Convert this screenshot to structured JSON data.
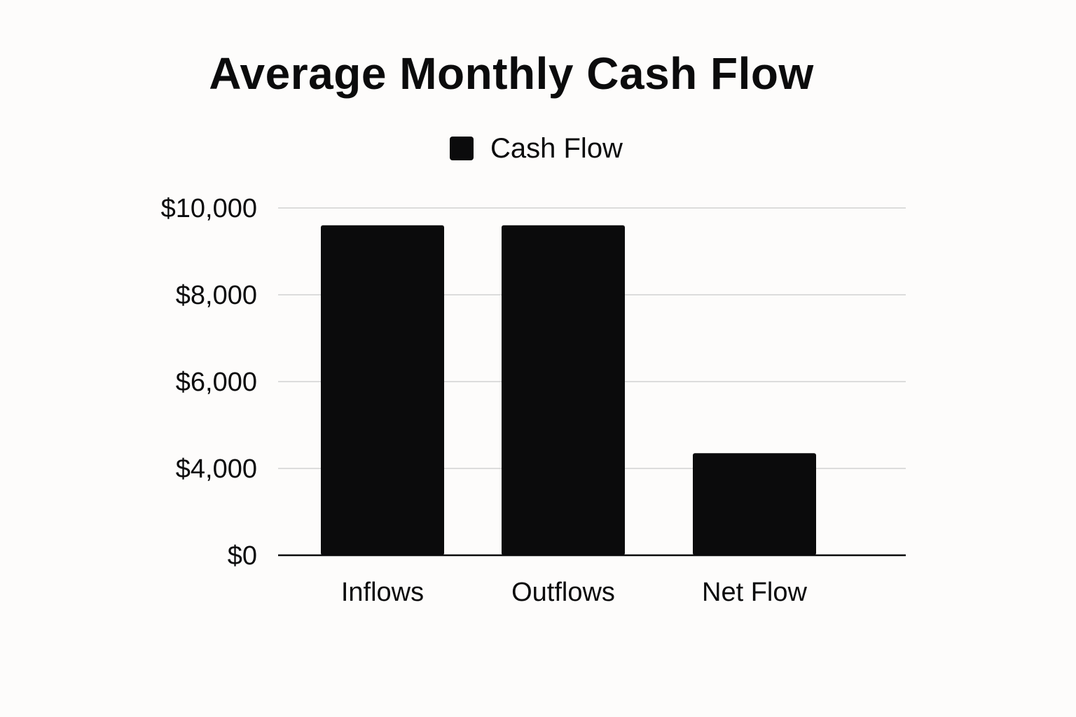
{
  "chart_data": {
    "type": "bar",
    "title": "Average Monthly Cash Flow",
    "xlabel": "",
    "ylabel": "",
    "categories": [
      "Inflows",
      "Outflows",
      "Net Flow"
    ],
    "series": [
      {
        "name": "Cash Flow",
        "values": [
          9600,
          9600,
          4350
        ],
        "color": "#0b0b0c"
      }
    ],
    "y_ticks": [
      0,
      4000,
      6000,
      8000,
      10000
    ],
    "y_tick_labels": [
      "$0",
      "$4,000",
      "$6,000",
      "$8,000",
      "$10,000"
    ],
    "ylim": [
      0,
      10000
    ],
    "grid": true,
    "legend_position": "top-center"
  }
}
